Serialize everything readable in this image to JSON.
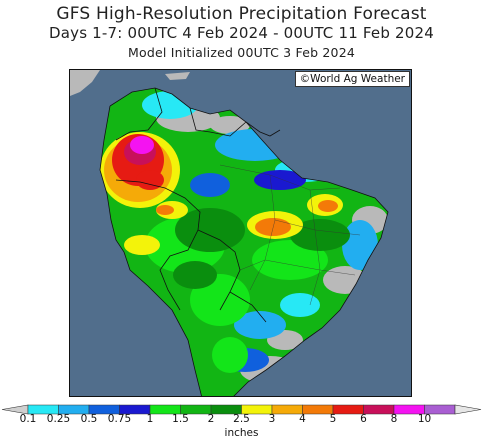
{
  "header": {
    "title": "GFS High-Resolution Precipitation Forecast",
    "subtitle": "Days 1-7: 00UTC 4 Feb 2024 - 00UTC 11 Feb 2024",
    "init": "Model Initialized 00UTC 3 Feb 2024"
  },
  "map": {
    "credit": "©World Ag Weather",
    "ocean_color": "#516e8c",
    "land_color": "#b9b9b9"
  },
  "legend": {
    "units": "inches",
    "ticks": [
      "0.1",
      "0.25",
      "0.5",
      "0.75",
      "1",
      "1.5",
      "2",
      "2.5",
      "3",
      "4",
      "5",
      "6",
      "8",
      "10"
    ],
    "colors": [
      "#cfcfcf",
      "#27e8f5",
      "#22aef0",
      "#1060dd",
      "#1a19d0",
      "#13e519",
      "#12b514",
      "#0a8e0e",
      "#f3f30a",
      "#f5aa08",
      "#f37a08",
      "#e61b13",
      "#c8105a",
      "#f413f1",
      "#a95ed2",
      "#e6e6e6"
    ]
  }
}
